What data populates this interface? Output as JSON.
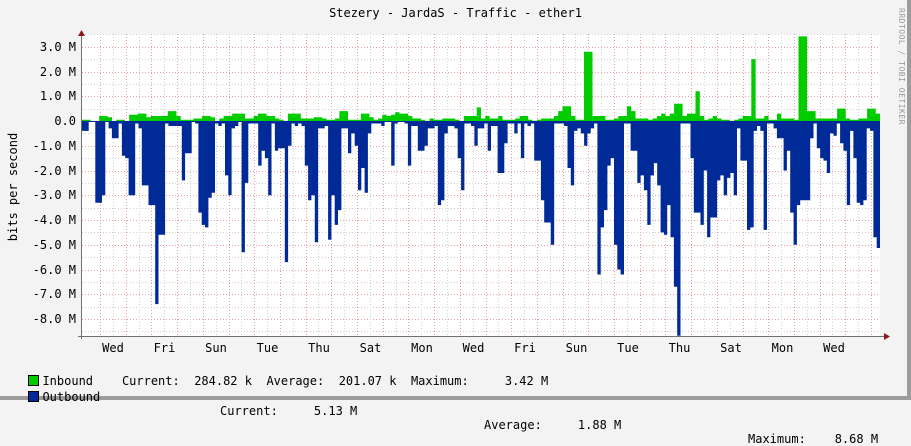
{
  "title": "Stezery - JardaS - Traffic - ether1",
  "watermark": "RRDTOOL / TOBI OETIKER",
  "chart_data": {
    "type": "area",
    "title": "Stezery - JardaS - Traffic - ether1",
    "xlabel": "",
    "ylabel": "bits per second",
    "ylim": [
      -8.7,
      3.5
    ],
    "grid": true,
    "yticks": [
      "3.0 M",
      "2.0 M",
      "1.0 M",
      "0.0",
      "-1.0 M",
      "-2.0 M",
      "-3.0 M",
      "-4.0 M",
      "-5.0 M",
      "-6.0 M",
      "-7.0 M",
      "-8.0 M"
    ],
    "ytick_values": [
      3,
      2,
      1,
      0,
      -1,
      -2,
      -3,
      -4,
      -5,
      -6,
      -7,
      -8
    ],
    "xticks": [
      "Wed",
      "Fri",
      "Sun",
      "Tue",
      "Thu",
      "Sat",
      "Mon",
      "Wed",
      "Fri",
      "Sun",
      "Tue",
      "Thu",
      "Sat",
      "Mon",
      "Wed"
    ],
    "legend_position": "bottom",
    "series": [
      {
        "name": "Inbound",
        "color": "#00cc00",
        "direction": "up",
        "values": [
          0.05,
          0.05,
          0,
          0,
          0.2,
          0.2,
          0.15,
          0,
          0.05,
          0.05,
          0,
          0.25,
          0.25,
          0.3,
          0.3,
          0.15,
          0.2,
          0.2,
          0.2,
          0.2,
          0.4,
          0.4,
          0.2,
          0.05,
          0.05,
          0.05,
          0.1,
          0.1,
          0.2,
          0.2,
          0.15,
          0,
          0.1,
          0.2,
          0.2,
          0.3,
          0.3,
          0.3,
          0.1,
          0.1,
          0.2,
          0.3,
          0.3,
          0.2,
          0.2,
          0.1,
          0.05,
          0,
          0.3,
          0.3,
          0.3,
          0.1,
          0.1,
          0.1,
          0.15,
          0.15,
          0.1,
          0.05,
          0.05,
          0.1,
          0.4,
          0.4,
          0.05,
          0.05,
          0.05,
          0.3,
          0.3,
          0.15,
          0.05,
          0.1,
          0.25,
          0.2,
          0.25,
          0.35,
          0.3,
          0.3,
          0.2,
          0.1,
          0.1,
          0.05,
          0,
          0.1,
          0.05,
          0.05,
          0.1,
          0.1,
          0.1,
          0.05,
          0,
          0.2,
          0.2,
          0.2,
          0.55,
          0.1,
          0.2,
          0.1,
          0.1,
          0.2,
          0.05,
          0.05,
          0.05,
          0.1,
          0.2,
          0.2,
          0.05,
          0,
          0.05,
          0.1,
          0.1,
          0.1,
          0.2,
          0.4,
          0.6,
          0.6,
          0.2,
          0.05,
          0.05,
          2.8,
          2.8,
          0.2,
          0.2,
          0.2,
          0.05,
          0.05,
          0.1,
          0.2,
          0.2,
          0.6,
          0.4,
          0.1,
          0.1,
          0.1,
          0.05,
          0.1,
          0.2,
          0.3,
          0.2,
          0.3,
          0.7,
          0.7,
          0.2,
          0.3,
          0.3,
          1.2,
          0.2,
          0.05,
          0.1,
          0.2,
          0.1,
          0.05,
          0.05,
          0,
          0.05,
          0.1,
          0.2,
          0.2,
          2.5,
          0.1,
          0.1,
          0.2,
          0.05,
          0.05,
          0.3,
          0.1,
          0.1,
          0.1,
          0.05,
          3.42,
          3.42,
          0.4,
          0.4,
          0.1,
          0.1,
          0.1,
          0.1,
          0.1,
          0.5,
          0.5,
          0.1,
          0.05,
          0.05,
          0.1,
          0.1,
          0.5,
          0.5,
          0.3
        ]
      },
      {
        "name": "Outbound",
        "color": "#002a97",
        "direction": "down",
        "values": [
          0.4,
          0.4,
          0,
          0,
          3.3,
          3.3,
          3.0,
          0,
          0.3,
          0.7,
          0.7,
          0.1,
          1.4,
          1.5,
          3.0,
          3.0,
          0.1,
          0.3,
          2.6,
          2.6,
          3.4,
          3.4,
          7.4,
          4.6,
          4.6,
          0.1,
          0.2,
          0.2,
          0.2,
          0.2,
          2.4,
          1.3,
          1.3,
          0,
          0.1,
          3.7,
          4.2,
          4.3,
          3.1,
          2.9,
          0.1,
          0.2,
          0.1,
          2.2,
          3.0,
          0.3,
          0.2,
          0,
          5.3,
          2.5,
          0.1,
          0.1,
          0.1,
          1.8,
          1.2,
          1.5,
          3.0,
          0.1,
          1.2,
          1.1,
          1.1,
          5.7,
          1.0,
          0.1,
          0.2,
          0.1,
          0.2,
          1.8,
          3.2,
          3.0,
          4.9,
          0.3,
          0.3,
          0.2,
          4.8,
          3.0,
          4.2,
          3.6,
          0.3,
          0.3,
          1.3,
          0.5,
          1.0,
          2.8,
          1.9,
          2.9,
          0.5,
          0.1,
          0.1,
          0.1,
          0.2,
          0,
          0,
          1.8,
          0.1,
          0,
          0,
          0.1,
          1.8,
          0.2,
          0.2,
          1.2,
          1.2,
          1.0,
          0.3,
          0.3,
          0.2,
          3.4,
          3.2,
          0.5,
          0.2,
          0.2,
          0.3,
          1.5,
          2.8,
          0.1,
          0.1,
          0.2,
          1.0,
          0.3,
          0.3,
          0.1,
          1.2,
          0.2,
          0.2,
          2.1,
          2.1,
          0.9,
          0.1,
          0.1,
          0.5,
          0.1,
          1.5,
          0.1,
          0.2,
          0.1,
          1.6,
          1.6,
          3.2,
          4.1,
          4.1,
          5.0,
          0.1,
          0.1,
          0.1,
          0.2,
          1.9,
          2.6,
          0.4,
          0.3,
          0.5,
          1.0,
          0.5,
          0.3,
          0.1,
          6.2,
          4.3,
          3.6,
          1.8,
          1.5,
          5.0,
          6.0,
          6.2,
          0.1,
          0.1,
          1.2,
          1.2,
          2.5,
          2.2,
          2.8,
          4.2,
          2.2,
          1.7,
          2.6,
          4.5,
          4.6,
          3.4,
          4.7,
          6.7,
          8.68,
          0.1,
          0.1,
          0.1,
          1.5,
          3.7,
          3.7,
          4.2,
          2.0,
          4.7,
          3.9,
          3.9,
          2.4,
          2.2,
          3.0,
          2.3,
          2.1,
          3.0,
          0.3,
          1.6,
          1.6,
          4.4,
          4.3,
          0.4,
          0.2,
          0.4,
          4.4,
          0.1,
          0.1,
          0.3,
          0.7,
          0.7,
          2.0,
          1.2,
          3.7,
          5.0,
          3.4,
          3.2,
          3.2,
          3.2,
          0.7,
          0.1,
          1.1,
          1.5,
          1.6,
          2.1,
          0.5,
          0.6,
          0.1,
          0.9,
          1.2,
          3.4,
          0.4,
          1.5,
          3.3,
          3.4,
          3.2,
          0.3,
          0.4,
          4.7,
          5.13
        ]
      }
    ]
  },
  "legend": {
    "inbound": {
      "label": "Inbound",
      "color": "#00cc00",
      "current_label": "Current:",
      "current": "284.82 k",
      "average_label": "Average:",
      "average": "201.07 k",
      "maximum_label": "Maximum:",
      "maximum": "3.42 M"
    },
    "outbound": {
      "label": "Outbound",
      "color": "#002a97",
      "current_label": "Current:",
      "current": "5.13 M",
      "average_label": "Average:",
      "average": "1.88 M",
      "maximum_label": "Maximum:",
      "maximum": "8.68 M"
    }
  }
}
